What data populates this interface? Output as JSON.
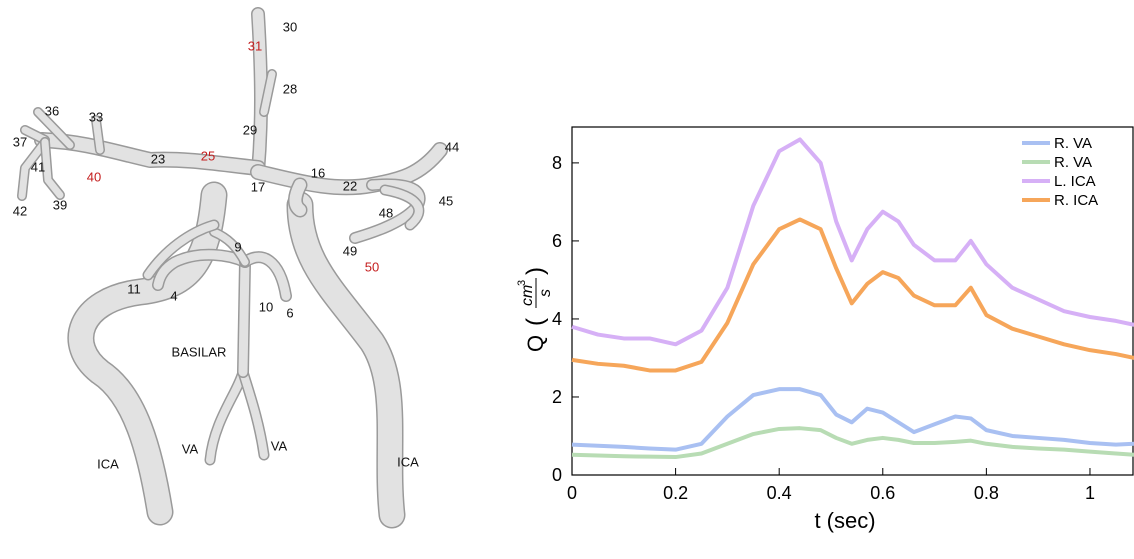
{
  "diagram": {
    "labels": [
      "30",
      "31",
      "28",
      "29",
      "36",
      "33",
      "37",
      "41",
      "23",
      "25",
      "16",
      "22",
      "44",
      "40",
      "17",
      "42",
      "39",
      "48",
      "45",
      "49",
      "50",
      "9",
      "11",
      "4",
      "10",
      "6",
      "BASILAR",
      "VA",
      "VA",
      "ICA",
      "ICA"
    ]
  },
  "chart_data": {
    "type": "line",
    "xlabel": "t (sec)",
    "ylabel": {
      "symbol": "Q",
      "open": "(",
      "numerator": "cm",
      "exponent": "3",
      "denominator": "s",
      "close": ")"
    },
    "x": [
      0,
      0.05,
      0.1,
      0.15,
      0.2,
      0.25,
      0.3,
      0.35,
      0.4,
      0.44,
      0.48,
      0.51,
      0.54,
      0.57,
      0.6,
      0.63,
      0.66,
      0.7,
      0.74,
      0.77,
      0.8,
      0.85,
      0.9,
      0.95,
      1.0,
      1.05,
      1.085
    ],
    "series": [
      {
        "name": "R. VA",
        "color": "#a9c0f2",
        "values": [
          0.78,
          0.75,
          0.72,
          0.68,
          0.65,
          0.8,
          1.5,
          2.05,
          2.2,
          2.2,
          2.05,
          1.55,
          1.35,
          1.7,
          1.6,
          1.35,
          1.1,
          1.3,
          1.5,
          1.45,
          1.15,
          1.0,
          0.95,
          0.9,
          0.82,
          0.78,
          0.8
        ]
      },
      {
        "name": "R. VA",
        "color": "#b8dcb4",
        "values": [
          0.52,
          0.5,
          0.48,
          0.47,
          0.46,
          0.55,
          0.8,
          1.05,
          1.18,
          1.2,
          1.15,
          0.95,
          0.8,
          0.9,
          0.95,
          0.9,
          0.82,
          0.82,
          0.85,
          0.88,
          0.8,
          0.72,
          0.68,
          0.65,
          0.6,
          0.55,
          0.52
        ]
      },
      {
        "name": "L. ICA",
        "color": "#d6b0f6",
        "values": [
          3.8,
          3.6,
          3.5,
          3.5,
          3.35,
          3.7,
          4.8,
          6.9,
          8.3,
          8.6,
          8.0,
          6.5,
          5.5,
          6.3,
          6.75,
          6.5,
          5.9,
          5.5,
          5.5,
          6.0,
          5.4,
          4.8,
          4.5,
          4.2,
          4.05,
          3.95,
          3.85
        ]
      },
      {
        "name": "R. ICA",
        "color": "#f6a65a",
        "values": [
          2.95,
          2.85,
          2.8,
          2.68,
          2.68,
          2.9,
          3.9,
          5.4,
          6.3,
          6.55,
          6.3,
          5.3,
          4.4,
          4.9,
          5.2,
          5.05,
          4.6,
          4.35,
          4.35,
          4.8,
          4.1,
          3.75,
          3.55,
          3.35,
          3.2,
          3.1,
          3.0
        ]
      }
    ],
    "xlim": [
      0,
      1.085
    ],
    "xticks": [
      0,
      0.2,
      0.4,
      0.6,
      0.8,
      1
    ],
    "ylim": [
      0,
      8.92
    ],
    "yticks": [
      0,
      2,
      4,
      6,
      8
    ],
    "legend": "upper right",
    "grid": false
  }
}
